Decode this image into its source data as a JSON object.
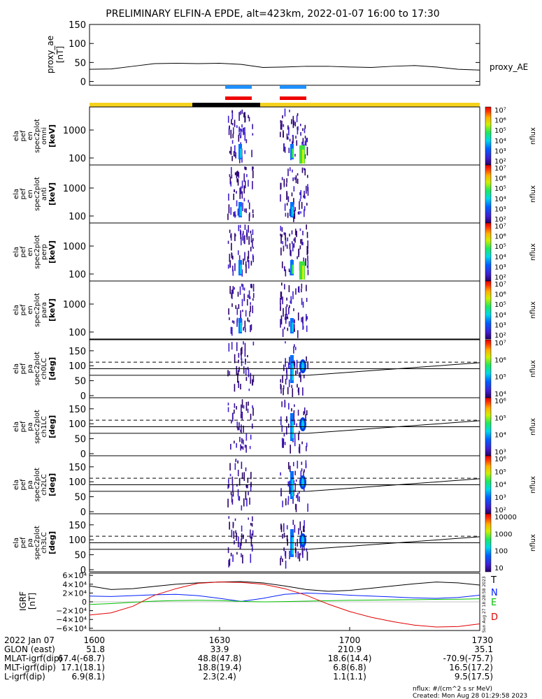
{
  "title": "PRELIMINARY ELFIN-A EPDE, alt=423km, 2022-01-07 16:00 to 17:30",
  "colors": {
    "T": "#000000",
    "N": "#0020ff",
    "E": "#00c000",
    "D": "#e00000",
    "bar_yellow": "#f5d21e",
    "bar_black": "#000000",
    "sci_blue": "#1e90ff",
    "sci_red": "#ee0000"
  },
  "chart_data": [
    {
      "type": "line",
      "panel": "proxy_ae",
      "ylabel": "proxy_ae [nT]",
      "ylim": [
        -10,
        150
      ],
      "yticks": [
        "0",
        "50",
        "100",
        "150"
      ],
      "series": [
        {
          "name": "proxy_AE",
          "x": [
            0,
            5,
            10,
            15,
            20,
            25,
            30,
            35,
            40,
            45,
            50,
            55,
            60,
            65,
            70,
            75,
            80,
            85,
            90
          ],
          "y": [
            32,
            33,
            40,
            47,
            48,
            47,
            48,
            45,
            37,
            38,
            40,
            40,
            38,
            37,
            40,
            42,
            38,
            32,
            30
          ]
        }
      ]
    },
    {
      "type": "heatmap",
      "panel": "spectrogram",
      "ylabel": [
        "ela",
        "pef",
        "en",
        "spec2plot",
        "omni",
        "[keV]"
      ],
      "yticks": [
        "100",
        "1000"
      ],
      "zlabel": "nflux",
      "zticks": [
        "10²",
        "10³",
        "10⁴",
        "10⁵",
        "10⁶",
        "10⁷"
      ]
    },
    {
      "type": "heatmap",
      "panel": "spectrogram",
      "ylabel": [
        "ela",
        "pef",
        "en",
        "spec2plot",
        "anti",
        "[keV]"
      ],
      "yticks": [
        "100",
        "1000"
      ],
      "zlabel": "nflux",
      "zticks": [
        "10²",
        "10³",
        "10⁴",
        "10⁵",
        "10⁶",
        "10⁷"
      ]
    },
    {
      "type": "heatmap",
      "panel": "spectrogram",
      "ylabel": [
        "ela",
        "pef",
        "en",
        "spec2plot",
        "perp",
        "[keV]"
      ],
      "yticks": [
        "100",
        "1000"
      ],
      "zlabel": "nflux",
      "zticks": [
        "10²",
        "10³",
        "10⁴",
        "10⁵",
        "10⁶",
        "10⁷"
      ]
    },
    {
      "type": "heatmap",
      "panel": "spectrogram",
      "ylabel": [
        "ela",
        "pef",
        "en",
        "spec2plot",
        "para",
        "[keV]"
      ],
      "yticks": [
        "100",
        "1000"
      ],
      "zlabel": "nflux",
      "zticks": [
        "10²",
        "10³",
        "10⁴",
        "10⁵",
        "10⁶",
        "10⁷"
      ]
    },
    {
      "type": "heatmap",
      "panel": "pitch",
      "ylabel": [
        "ela",
        "pef",
        "pa",
        "spec2plot",
        "ch0LC",
        "[deg]"
      ],
      "yticks": [
        "0",
        "50",
        "100",
        "150"
      ],
      "ylim": [
        0,
        180
      ],
      "zlabel": "nflux",
      "zticks": [
        "10⁴",
        "10⁵",
        "10⁶",
        "10⁷"
      ]
    },
    {
      "type": "heatmap",
      "panel": "pitch",
      "ylabel": [
        "ela",
        "pef",
        "pa",
        "spec2plot",
        "ch1LC",
        "[deg]"
      ],
      "yticks": [
        "0",
        "50",
        "100",
        "150"
      ],
      "ylim": [
        0,
        180
      ],
      "zlabel": "nflux",
      "zticks": [
        "10³",
        "10⁴",
        "10⁵",
        "10⁶"
      ]
    },
    {
      "type": "heatmap",
      "panel": "pitch",
      "ylabel": [
        "ela",
        "pef",
        "pa",
        "spec2plot",
        "ch2LC",
        "[deg]"
      ],
      "yticks": [
        "0",
        "50",
        "100",
        "150"
      ],
      "ylim": [
        0,
        180
      ],
      "zlabel": "nflux",
      "zticks": [
        "10²",
        "10³",
        "10⁴",
        "10⁵",
        "10⁶"
      ]
    },
    {
      "type": "heatmap",
      "panel": "pitch",
      "ylabel": [
        "ela",
        "pef",
        "pa",
        "spec2plot",
        "ch3LC",
        "[deg]"
      ],
      "yticks": [
        "0",
        "50",
        "100",
        "150"
      ],
      "ylim": [
        0,
        180
      ],
      "zlabel": "nflux",
      "zticks": [
        "10",
        "100",
        "1000",
        "10000"
      ]
    },
    {
      "type": "line",
      "panel": "igrf",
      "ylabel": "IGRF [nT]",
      "ylim": [
        -65000,
        65000
      ],
      "yticks": [
        "6×10⁴",
        "4×10⁴",
        "2×10⁴",
        "0",
        "−2×10⁴",
        "−4×10⁴",
        "−6×10⁴"
      ],
      "series": [
        {
          "name": "T",
          "x": [
            0,
            5,
            10,
            15,
            20,
            25,
            30,
            35,
            40,
            45,
            50,
            55,
            60,
            65,
            70,
            75,
            80,
            85,
            90
          ],
          "y": [
            36000,
            28000,
            30000,
            35000,
            40000,
            43000,
            45000,
            46000,
            43000,
            36000,
            28000,
            24000,
            26000,
            31000,
            36000,
            41000,
            45000,
            43000,
            38000
          ]
        },
        {
          "name": "N",
          "x": [
            0,
            5,
            10,
            15,
            20,
            25,
            30,
            35,
            40,
            45,
            50,
            55,
            60,
            65,
            70,
            75,
            80,
            85,
            90
          ],
          "y": [
            13000,
            12000,
            14000,
            16000,
            17000,
            14000,
            8000,
            1000,
            8000,
            17000,
            20000,
            18000,
            15000,
            13000,
            11000,
            9000,
            8000,
            10000,
            15000
          ]
        },
        {
          "name": "E",
          "x": [
            0,
            5,
            10,
            15,
            20,
            25,
            30,
            35,
            40,
            45,
            50,
            55,
            60,
            65,
            70,
            75,
            80,
            85,
            90
          ],
          "y": [
            -6000,
            -4000,
            -1000,
            1500,
            3000,
            3500,
            3000,
            1000,
            0,
            500,
            1500,
            2500,
            3500,
            4000,
            4500,
            5000,
            5500,
            6000,
            7000
          ]
        },
        {
          "name": "D",
          "x": [
            0,
            5,
            10,
            15,
            20,
            25,
            30,
            35,
            40,
            45,
            50,
            55,
            60,
            65,
            70,
            75,
            80,
            85,
            90
          ],
          "y": [
            -30000,
            -25000,
            -10000,
            15000,
            30000,
            42000,
            45000,
            44000,
            40000,
            30000,
            15000,
            -5000,
            -22000,
            -35000,
            -45000,
            -53000,
            -57000,
            -56000,
            -50000
          ]
        }
      ]
    }
  ],
  "side_labels": {
    "proxy": "proxy_AE",
    "T": "T",
    "N": "N",
    "E": "E",
    "D": "D",
    "stamp": "Sun Aug 27 18:28:58 2023"
  },
  "footer": {
    "rows": [
      {
        "label": "2022 Jan 07",
        "vals": [
          "1600",
          "1630",
          "1700",
          "1730"
        ]
      },
      {
        "label": "GLON (east)",
        "vals": [
          "51.8",
          "33.9",
          "210.9",
          "35.1"
        ]
      },
      {
        "label": "MLAT-igrf(dip)",
        "vals": [
          "67.4(-68.7)",
          "48.8(47.8)",
          "18.6(14.4)",
          "-70.9(-75.7)"
        ]
      },
      {
        "label": "MLT-igrf(dip)",
        "vals": [
          "17.1(18.1)",
          "18.8(19.4)",
          "6.8(6.8)",
          "16.5(17.2)"
        ]
      },
      {
        "label": "L-igrf(dip)",
        "vals": [
          "6.9(8.1)",
          "2.3(2.4)",
          "1.1(1.1)",
          "9.5(17.5)"
        ]
      }
    ],
    "units": "nflux: #/(cm^2 s sr MeV)",
    "created": "Created: Mon Aug 28 01:29:58 2023"
  }
}
